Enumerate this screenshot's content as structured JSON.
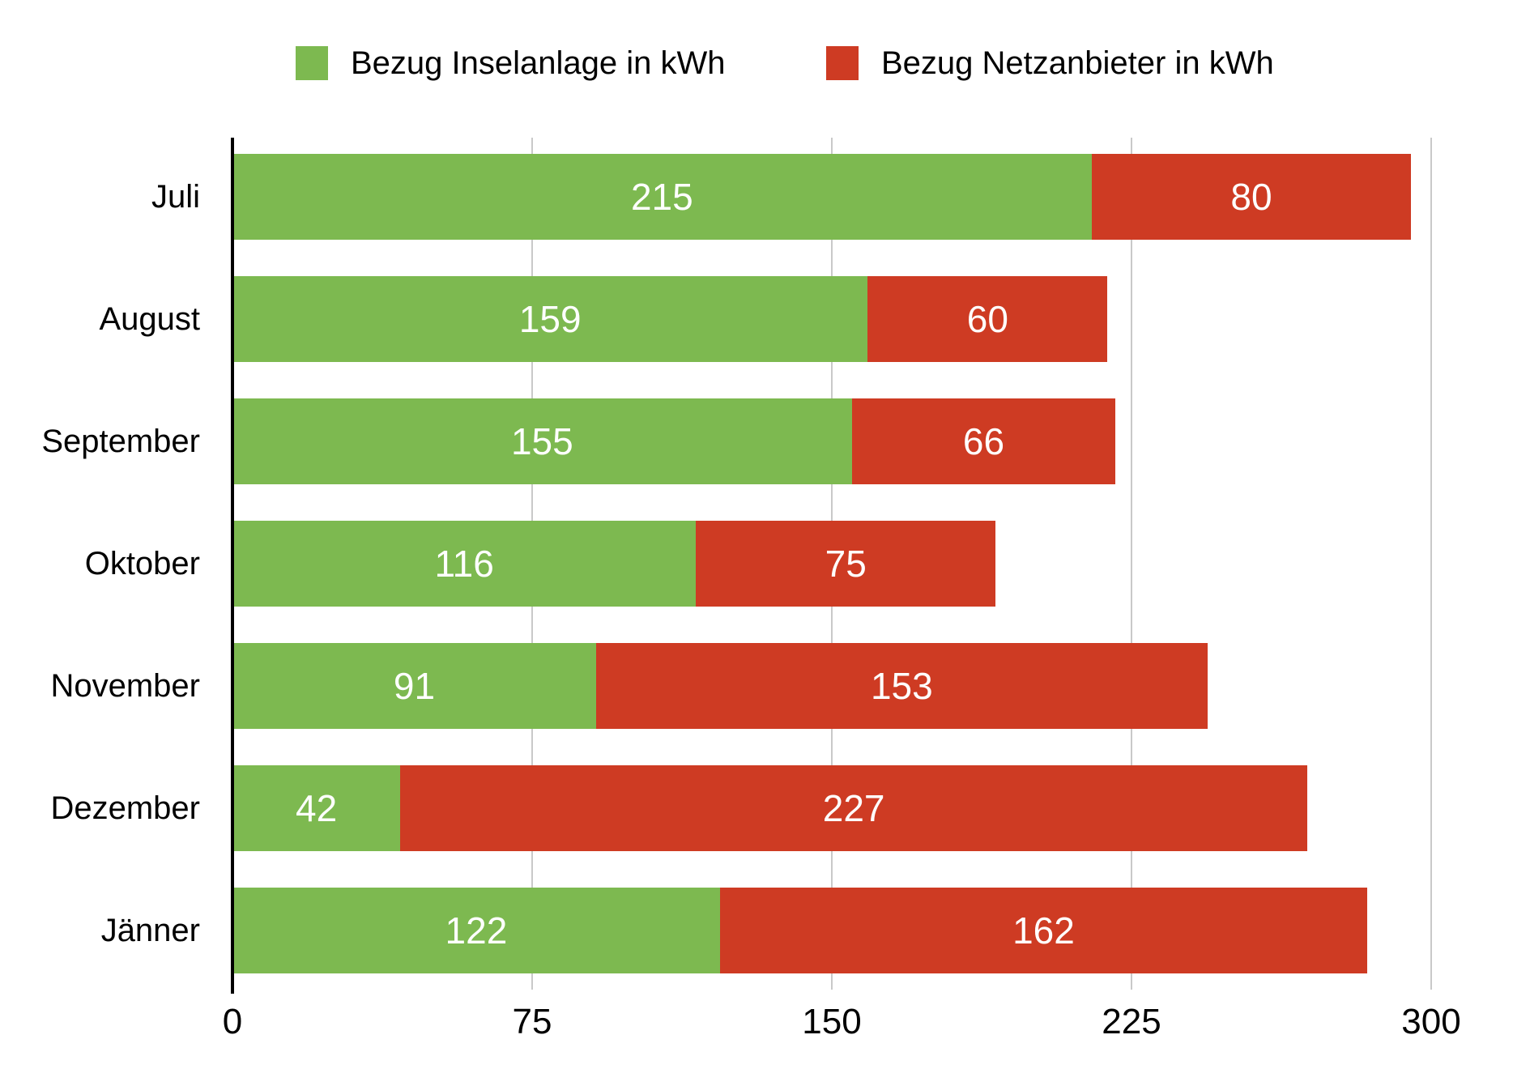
{
  "chart_data": {
    "type": "bar",
    "orientation": "horizontal",
    "stacked": true,
    "title": "",
    "xlabel": "",
    "ylabel": "",
    "categories": [
      "Juli",
      "August",
      "September",
      "Oktober",
      "November",
      "Dezember",
      "Jänner"
    ],
    "series": [
      {
        "name": "Bezug Inselanlage in kWh",
        "color": "#7db950",
        "values": [
          215,
          159,
          155,
          116,
          91,
          42,
          122
        ]
      },
      {
        "name": "Bezug Netzanbieter in kWh",
        "color": "#ce3b23",
        "values": [
          80,
          60,
          66,
          75,
          153,
          227,
          162
        ]
      }
    ],
    "xlim": [
      0,
      300
    ],
    "xticks": [
      0,
      75,
      150,
      225,
      300
    ],
    "grid": true,
    "gridline_color": "#c9c9c9",
    "axis_color": "#000000",
    "value_label_color": "#ffffff",
    "legend_position": "top"
  }
}
